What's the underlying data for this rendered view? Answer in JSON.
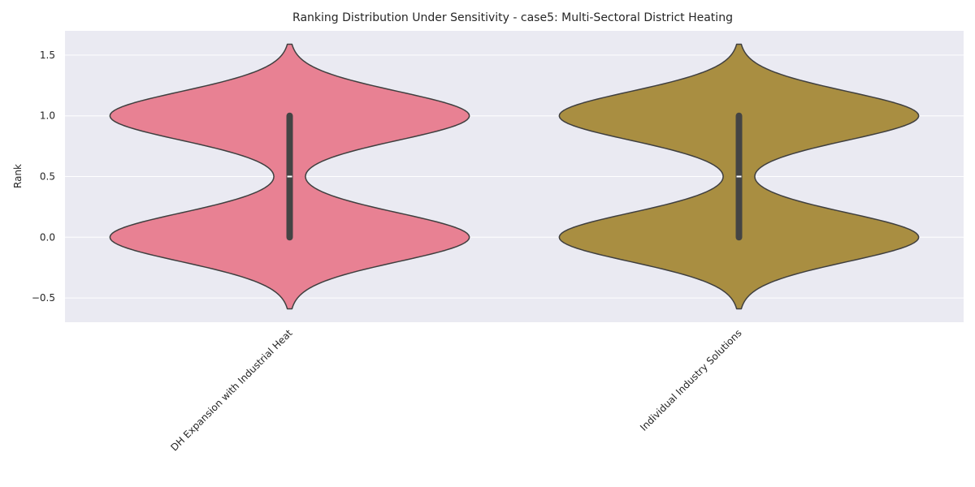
{
  "chart_data": {
    "type": "violin",
    "title": "Ranking Distribution Under Sensitivity - case5: Multi-Sectoral District Heating",
    "xlabel": "",
    "ylabel": "Rank",
    "ylim": [
      -0.7,
      1.7
    ],
    "y_ticks": [
      -0.5,
      0.0,
      0.5,
      1.0,
      1.5
    ],
    "y_tick_labels": [
      "−0.5",
      "0.0",
      "0.5",
      "1.0",
      "1.5"
    ],
    "grid": true,
    "categories": [
      "DH Expansion with Industrial Heat",
      "Individual Industry Solutions"
    ],
    "colors": [
      "#e88193",
      "#a98e41"
    ],
    "series": [
      {
        "category": "DH Expansion with Industrial Heat",
        "values": [
          0,
          1
        ],
        "median": 0.5,
        "q1": 0.0,
        "q3": 1.0,
        "min": 0,
        "max": 1,
        "violin_extent": [
          -0.59,
          1.59
        ]
      },
      {
        "category": "Individual Industry Solutions",
        "values": [
          0,
          1
        ],
        "median": 0.5,
        "q1": 0.0,
        "q3": 1.0,
        "min": 0,
        "max": 1,
        "violin_extent": [
          -0.59,
          1.59
        ]
      }
    ]
  }
}
